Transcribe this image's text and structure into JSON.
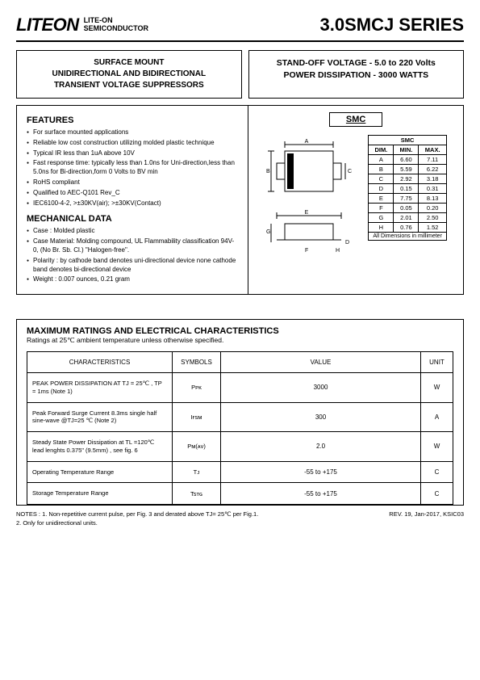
{
  "header": {
    "logo": "LITEON",
    "brand_line1": "LITE-ON",
    "brand_line2": "SEMICONDUCTOR",
    "series": "3.0SMCJ SERIES"
  },
  "box_left": {
    "line1": "SURFACE MOUNT",
    "line2": "UNIDIRECTIONAL AND BIDIRECTIONAL",
    "line3": "TRANSIENT VOLTAGE SUPPRESSORS"
  },
  "box_right": {
    "line1a": "STAND-OFF VOLTAGE - ",
    "line1b": "5.0",
    "line1c": " to ",
    "line1d": "220",
    "line1e": " Volts",
    "line2a": "POWER DISSIPATION   - ",
    "line2b": "3000",
    "line2c": " WATTS"
  },
  "features": {
    "title": "FEATURES",
    "items": [
      "For surface mounted applications",
      "Reliable low cost construction utilizing molded plastic technique",
      "Typical IR less than 1uA above 10V",
      "Fast response time: typically less than 1.0ns for Uni-direction,less than 5.0ns for Bi-direction,form 0 Volts to BV min",
      "RoHS compliant",
      "Qualified to AEC-Q101 Rev_C",
      "IEC6100-4-2, >±30KV(air); >±30KV(Contact)"
    ]
  },
  "mechanical": {
    "title": "MECHANICAL DATA",
    "items": [
      "Case : Molded plastic",
      "Case Material: Molding compound, UL Flammability classification 94V-0, (No Br. Sb. Cl.) \"Halogen-free\".",
      "Polarity : by cathode band denotes uni-directional device none cathode band denotes bi-directional device",
      "Weight : 0.007 ounces, 0.21 gram"
    ]
  },
  "smc_label": "SMC",
  "dim_table": {
    "header": "SMC",
    "cols": [
      "DIM.",
      "MIN.",
      "MAX."
    ],
    "rows": [
      [
        "A",
        "6.60",
        "7.11"
      ],
      [
        "B",
        "5.59",
        "6.22"
      ],
      [
        "C",
        "2.92",
        "3.18"
      ],
      [
        "D",
        "0.15",
        "0.31"
      ],
      [
        "E",
        "7.75",
        "8.13"
      ],
      [
        "F",
        "0.05",
        "0.20"
      ],
      [
        "G",
        "2.01",
        "2.50"
      ],
      [
        "H",
        "0.76",
        "1.52"
      ]
    ],
    "footer": "All Dimensions in millimeter"
  },
  "ratings": {
    "title": "MAXIMUM RATINGS AND ELECTRICAL CHARACTERISTICS",
    "subtitle": "Ratings at 25℃ ambient temperature unless otherwise specified.",
    "headers": [
      "CHARACTERISTICS",
      "SYMBOLS",
      "VALUE",
      "UNIT"
    ],
    "rows": [
      {
        "char": "PEAK POWER DISSIPATION AT TJ = 25℃ , TP = 1ms (Note 1)",
        "sym": "Pᴘᴋ",
        "val": "3000",
        "unit": "W"
      },
      {
        "char": "Peak Forward Surge Current 8.3ms single half sine-wave @TJ=25 ℃ (Note 2)",
        "sym": "Iғsᴍ",
        "val": "300",
        "unit": "A"
      },
      {
        "char": "Steady State Power Dissipation at TL =120℃ lead lenghts 0.375\" (9.5mm) , see fig. 6",
        "sym": "Pᴍ(ᴀᴠ)",
        "val": "2.0",
        "unit": "W"
      },
      {
        "char": "Operating Temperature Range",
        "sym": "Tᴊ",
        "val": "-55 to +175",
        "unit": "C"
      },
      {
        "char": "Storage Temperature Range",
        "sym": "Tsᴛɢ",
        "val": "-55 to +175",
        "unit": "C"
      }
    ]
  },
  "notes": {
    "left": "NOTES : 1. Non-repetitive current pulse, per Fig. 3 and derated above TJ= 25℃ per Fig.1.\n             2. Only for unidirectional units.",
    "right": "REV. 19, Jan-2017, KSIC03"
  }
}
